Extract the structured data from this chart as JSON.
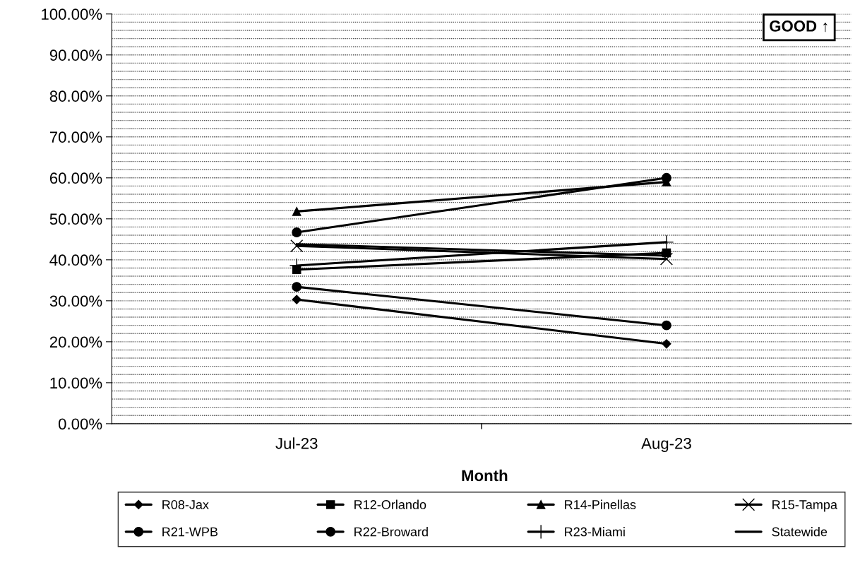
{
  "chart_data": {
    "type": "line",
    "xlabel": "Month",
    "categories": [
      "Jul-23",
      "Aug-23"
    ],
    "series": [
      {
        "name": "R08-Jax",
        "color": "#000000",
        "marker": "diamond",
        "values": [
          30.3,
          19.5
        ]
      },
      {
        "name": "R12-Orlando",
        "color": "#000000",
        "marker": "square",
        "values": [
          37.6,
          41.7
        ]
      },
      {
        "name": "R14-Pinellas",
        "color": "#000000",
        "marker": "triangle",
        "values": [
          51.8,
          59.0
        ]
      },
      {
        "name": "R15-Tampa",
        "color": "#000000",
        "marker": "x",
        "values": [
          43.4,
          40.2
        ]
      },
      {
        "name": "R21-WPB",
        "color": "#000000",
        "marker": "circle",
        "values": [
          33.4,
          24.0
        ]
      },
      {
        "name": "R22-Broward",
        "color": "#000000",
        "marker": "circle",
        "values": [
          46.7,
          60.0
        ]
      },
      {
        "name": "R23-Miami",
        "color": "#000000",
        "marker": "plus",
        "values": [
          38.6,
          44.3
        ]
      },
      {
        "name": "Statewide",
        "color": "#000000",
        "marker": "none",
        "values": [
          43.8,
          41.0
        ]
      }
    ],
    "ylim": [
      0,
      100
    ],
    "yticks": [
      {
        "value": 0,
        "label": "0.00%"
      },
      {
        "value": 2,
        "label": null
      },
      {
        "value": 4,
        "label": null
      },
      {
        "value": 6,
        "label": null
      },
      {
        "value": 8,
        "label": null
      },
      {
        "value": 10,
        "label": "10.00%"
      },
      {
        "value": 12,
        "label": null
      },
      {
        "value": 14,
        "label": null
      },
      {
        "value": 16,
        "label": null
      },
      {
        "value": 18,
        "label": null
      },
      {
        "value": 20,
        "label": "20.00%"
      },
      {
        "value": 22,
        "label": null
      },
      {
        "value": 24,
        "label": null
      },
      {
        "value": 26,
        "label": null
      },
      {
        "value": 28,
        "label": null
      },
      {
        "value": 30,
        "label": "30.00%"
      },
      {
        "value": 32,
        "label": null
      },
      {
        "value": 34,
        "label": null
      },
      {
        "value": 36,
        "label": null
      },
      {
        "value": 38,
        "label": null
      },
      {
        "value": 40,
        "label": "40.00%"
      },
      {
        "value": 42,
        "label": null
      },
      {
        "value": 44,
        "label": null
      },
      {
        "value": 46,
        "label": null
      },
      {
        "value": 48,
        "label": null
      },
      {
        "value": 50,
        "label": "50.00%"
      },
      {
        "value": 52,
        "label": null
      },
      {
        "value": 54,
        "label": null
      },
      {
        "value": 56,
        "label": null
      },
      {
        "value": 58,
        "label": null
      },
      {
        "value": 60,
        "label": "60.00%"
      },
      {
        "value": 62,
        "label": null
      },
      {
        "value": 64,
        "label": null
      },
      {
        "value": 66,
        "label": null
      },
      {
        "value": 68,
        "label": null
      },
      {
        "value": 70,
        "label": "70.00%"
      },
      {
        "value": 72,
        "label": null
      },
      {
        "value": 74,
        "label": null
      },
      {
        "value": 76,
        "label": null
      },
      {
        "value": 78,
        "label": null
      },
      {
        "value": 80,
        "label": "80.00%"
      },
      {
        "value": 82,
        "label": null
      },
      {
        "value": 84,
        "label": null
      },
      {
        "value": 86,
        "label": null
      },
      {
        "value": 88,
        "label": null
      },
      {
        "value": 90,
        "label": "90.00%"
      },
      {
        "value": 92,
        "label": null
      },
      {
        "value": 94,
        "label": null
      },
      {
        "value": 96,
        "label": null
      },
      {
        "value": 98,
        "label": null
      },
      {
        "value": 100,
        "label": "100.00%"
      }
    ],
    "grid": "y",
    "legend": "bottom",
    "line_style": "solid",
    "annotations": [
      "GOOD ↑"
    ]
  }
}
